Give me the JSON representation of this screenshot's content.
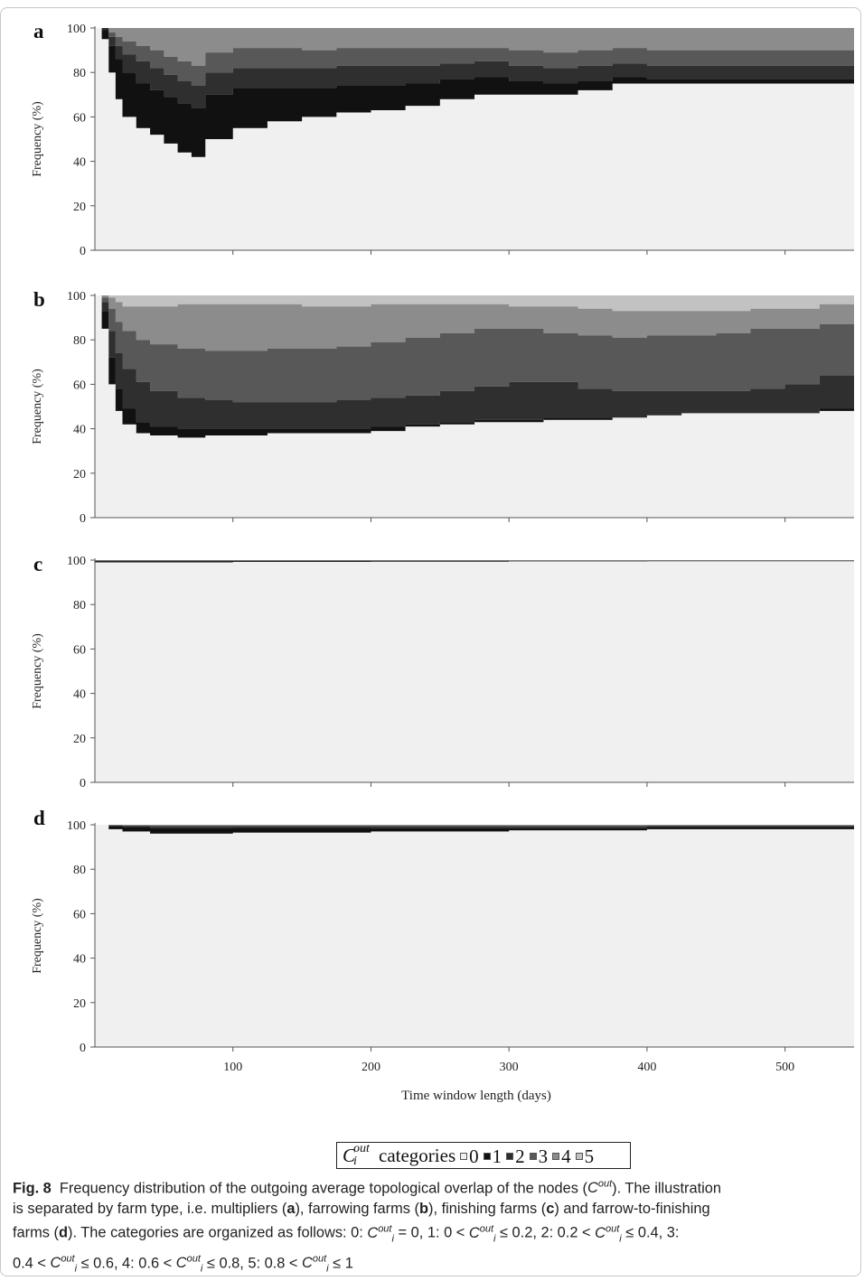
{
  "chart_data": [
    {
      "type": "area",
      "panel_label": "a",
      "ylabel": "Frequency (%)",
      "xlabel": "",
      "ylim": [
        0,
        100
      ],
      "xlim": [
        0,
        550
      ],
      "yticks": [
        0,
        20,
        40,
        60,
        80,
        100
      ],
      "xticks": [
        100,
        200,
        300,
        400,
        500
      ],
      "show_x_tick_labels": false,
      "x": [
        0,
        5,
        10,
        15,
        20,
        30,
        40,
        50,
        60,
        70,
        80,
        100,
        125,
        150,
        175,
        200,
        225,
        250,
        275,
        300,
        325,
        350,
        375,
        400,
        450,
        500,
        550
      ],
      "series": [
        {
          "category": "0",
          "values": [
            100,
            95,
            80,
            68,
            60,
            55,
            52,
            48,
            44,
            42,
            50,
            55,
            58,
            60,
            62,
            63,
            65,
            68,
            70,
            70,
            70,
            72,
            75,
            75,
            75,
            75,
            75
          ]
        },
        {
          "category": "1",
          "values": [
            0,
            4,
            12,
            18,
            20,
            20,
            20,
            21,
            22,
            22,
            20,
            18,
            15,
            13,
            12,
            11,
            10,
            9,
            8,
            6,
            5,
            4,
            3,
            2,
            2,
            2,
            2
          ]
        },
        {
          "category": "2",
          "values": [
            0,
            1,
            4,
            6,
            8,
            10,
            10,
            10,
            10,
            10,
            10,
            9,
            9,
            9,
            9,
            9,
            8,
            7,
            7,
            7,
            7,
            7,
            6,
            6,
            6,
            6,
            6
          ]
        },
        {
          "category": "3",
          "values": [
            0,
            0,
            2,
            4,
            6,
            7,
            8,
            8,
            9,
            9,
            9,
            9,
            9,
            8,
            8,
            8,
            8,
            7,
            6,
            7,
            7,
            7,
            7,
            7,
            7,
            7,
            7
          ]
        },
        {
          "category": "4",
          "values": [
            0,
            0,
            2,
            4,
            6,
            8,
            10,
            13,
            15,
            17,
            11,
            9,
            9,
            10,
            9,
            9,
            9,
            9,
            9,
            10,
            11,
            10,
            9,
            10,
            10,
            10,
            10
          ]
        },
        {
          "category": "5",
          "values": [
            0,
            0,
            0,
            0,
            0,
            0,
            0,
            0,
            0,
            0,
            0,
            0,
            0,
            0,
            0,
            0,
            0,
            0,
            0,
            0,
            0,
            0,
            0,
            0,
            0,
            0,
            0
          ]
        }
      ]
    },
    {
      "type": "area",
      "panel_label": "b",
      "ylabel": "Frequency (%)",
      "xlabel": "",
      "ylim": [
        0,
        100
      ],
      "xlim": [
        0,
        550
      ],
      "yticks": [
        0,
        20,
        40,
        60,
        80,
        100
      ],
      "xticks": [
        100,
        200,
        300,
        400,
        500
      ],
      "show_x_tick_labels": false,
      "x": [
        0,
        5,
        10,
        15,
        20,
        30,
        40,
        60,
        80,
        100,
        125,
        150,
        175,
        200,
        225,
        250,
        275,
        300,
        325,
        350,
        375,
        400,
        425,
        450,
        475,
        500,
        525,
        550
      ],
      "series": [
        {
          "category": "0",
          "values": [
            100,
            85,
            60,
            48,
            42,
            38,
            37,
            36,
            37,
            37,
            38,
            38,
            38,
            39,
            41,
            42,
            43,
            43,
            44,
            44,
            45,
            46,
            47,
            47,
            47,
            47,
            48,
            50
          ]
        },
        {
          "category": "1",
          "values": [
            0,
            8,
            12,
            10,
            7,
            5,
            4,
            4,
            3,
            3,
            2,
            2,
            2,
            2,
            1,
            1,
            1,
            1,
            1,
            1,
            0,
            0,
            0,
            0,
            0,
            0,
            1,
            2
          ]
        },
        {
          "category": "2",
          "values": [
            0,
            4,
            12,
            16,
            18,
            18,
            16,
            14,
            13,
            12,
            12,
            12,
            13,
            13,
            13,
            14,
            15,
            17,
            16,
            13,
            12,
            11,
            10,
            10,
            11,
            13,
            15,
            16
          ]
        },
        {
          "category": "3",
          "values": [
            0,
            2,
            10,
            14,
            17,
            19,
            21,
            22,
            22,
            23,
            24,
            24,
            24,
            25,
            26,
            26,
            26,
            24,
            22,
            24,
            24,
            25,
            25,
            26,
            27,
            25,
            23,
            22
          ]
        },
        {
          "category": "4",
          "values": [
            0,
            1,
            5,
            9,
            11,
            15,
            17,
            20,
            21,
            21,
            20,
            19,
            18,
            17,
            15,
            13,
            11,
            10,
            12,
            12,
            12,
            11,
            11,
            10,
            9,
            9,
            9,
            8
          ]
        },
        {
          "category": "5",
          "values": [
            0,
            0,
            1,
            3,
            5,
            5,
            5,
            4,
            4,
            4,
            4,
            5,
            5,
            4,
            4,
            4,
            4,
            5,
            5,
            6,
            7,
            7,
            7,
            7,
            6,
            6,
            4,
            2
          ]
        }
      ]
    },
    {
      "type": "area",
      "panel_label": "c",
      "ylabel": "Frequency (%)",
      "xlabel": "",
      "ylim": [
        0,
        100
      ],
      "xlim": [
        0,
        550
      ],
      "yticks": [
        0,
        20,
        40,
        60,
        80,
        100
      ],
      "xticks": [
        100,
        200,
        300,
        400,
        500
      ],
      "show_x_tick_labels": false,
      "x": [
        0,
        100,
        200,
        300,
        400,
        550
      ],
      "series": [
        {
          "category": "0",
          "values": [
            99.0,
            99.2,
            99.3,
            99.4,
            99.5,
            99.5
          ]
        },
        {
          "category": "1",
          "values": [
            0.4,
            0.2,
            0.1,
            0.1,
            0.0,
            0.0
          ]
        },
        {
          "category": "2",
          "values": [
            0.2,
            0.2,
            0.2,
            0.2,
            0.1,
            0.1
          ]
        },
        {
          "category": "3",
          "values": [
            0.2,
            0.2,
            0.2,
            0.1,
            0.2,
            0.2
          ]
        },
        {
          "category": "4",
          "values": [
            0.2,
            0.2,
            0.2,
            0.2,
            0.2,
            0.2
          ]
        },
        {
          "category": "5",
          "values": [
            0,
            0,
            0,
            0,
            0,
            0
          ]
        }
      ]
    },
    {
      "type": "area",
      "panel_label": "d",
      "ylabel": "Frequency (%)",
      "xlabel": "Time window length (days)",
      "ylim": [
        0,
        100
      ],
      "xlim": [
        0,
        550
      ],
      "yticks": [
        0,
        20,
        40,
        60,
        80,
        100
      ],
      "xticks": [
        100,
        200,
        300,
        400,
        500
      ],
      "show_x_tick_labels": true,
      "x": [
        0,
        10,
        20,
        40,
        60,
        100,
        200,
        300,
        400,
        500,
        550
      ],
      "series": [
        {
          "category": "0",
          "values": [
            100,
            98,
            97,
            96,
            96,
            96.5,
            97,
            97.5,
            98,
            98,
            98
          ]
        },
        {
          "category": "1",
          "values": [
            0,
            1.2,
            1.8,
            2.5,
            2.5,
            2.1,
            1.5,
            1.0,
            0.8,
            0.8,
            0.8
          ]
        },
        {
          "category": "2",
          "values": [
            0,
            0.4,
            0.6,
            0.8,
            0.8,
            0.7,
            0.8,
            0.8,
            0.6,
            0.6,
            0.6
          ]
        },
        {
          "category": "3",
          "values": [
            0,
            0.2,
            0.3,
            0.4,
            0.4,
            0.4,
            0.4,
            0.4,
            0.3,
            0.3,
            0.3
          ]
        },
        {
          "category": "4",
          "values": [
            0,
            0.2,
            0.3,
            0.3,
            0.3,
            0.3,
            0.3,
            0.3,
            0.3,
            0.3,
            0.3
          ]
        },
        {
          "category": "5",
          "values": [
            0,
            0,
            0,
            0,
            0,
            0,
            0,
            0,
            0,
            0,
            0
          ]
        }
      ]
    }
  ],
  "colors": {
    "category_0": "#f0f0f0",
    "category_1": "#111111",
    "category_2": "#2f2f2f",
    "category_3": "#585858",
    "category_4": "#8c8c8c",
    "category_5": "#c2c2c2",
    "axis": "#555555"
  },
  "legend": {
    "symbol_base": "C",
    "symbol_sup": "out",
    "symbol_sub": "i",
    "text": "categories",
    "items": [
      "0",
      "1",
      "2",
      "3",
      "4",
      "5"
    ]
  },
  "caption": {
    "fig_label": "Fig. 8",
    "line1": "Frequency distribution of the outgoing average topological overlap of the nodes (",
    "line1_end": "). The illustration",
    "line2_a": "is separated by farm type, i.e. multipliers (",
    "line2_b": "), farrowing farms (",
    "line2_c": "), finishing farms (",
    "line2_d": ") and farrow-to-finishing",
    "line3_a": "farms (",
    "line3_b": "). The categories are organized as follows: 0: ",
    "line3_c": " = 0, 1: 0 < ",
    "line3_d": " ≤ 0.2, 2: 0.2 < ",
    "line3_e": " ≤ 0.4, 3:",
    "line4_a": "0.4 < ",
    "line4_b": " ≤ 0.6, 4: 0.6 < ",
    "line4_c": " ≤ 0.8, 5: 0.8 < ",
    "line4_d": " ≤ 1",
    "panel_a": "a",
    "panel_b": "b",
    "panel_c": "c",
    "panel_d": "d",
    "ci_base": "C",
    "ci_sup": "out",
    "ci_sub": "i"
  }
}
